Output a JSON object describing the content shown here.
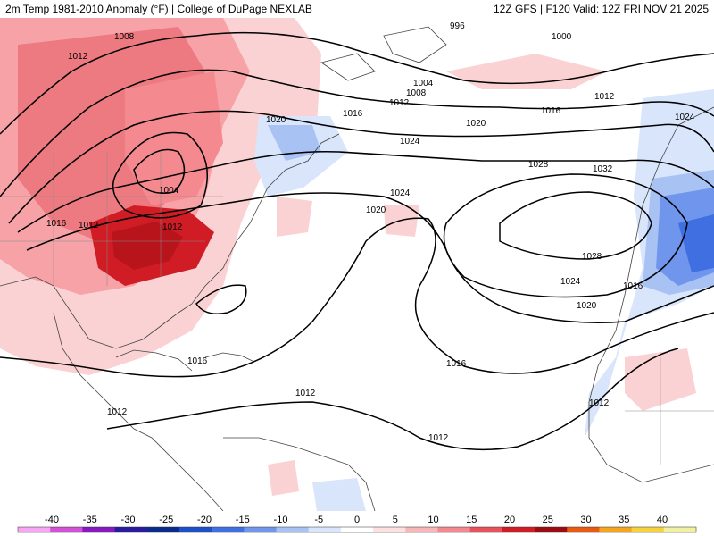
{
  "header": {
    "title_left": "2m Temp 1981-2010 Anomaly (°F) | College of DuPage NEXLAB",
    "title_right": "12Z GFS | F120 Valid: 12Z FRI NOV 21 2025"
  },
  "isobar_labels": [
    "1008",
    "1012",
    "996",
    "1000",
    "1004",
    "1008",
    "1012",
    "1016",
    "1020",
    "1024",
    "1020",
    "1016",
    "1012",
    "1024",
    "1028",
    "1032",
    "1004",
    "1016",
    "1012",
    "1012",
    "1024",
    "1020",
    "1028",
    "1024",
    "1016",
    "1020",
    "1016",
    "1012",
    "1012",
    "1016",
    "1012",
    "1012"
  ],
  "legend": {
    "ticks": [
      "-40",
      "-35",
      "-30",
      "-25",
      "-20",
      "-15",
      "-10",
      "-5",
      "0",
      "5",
      "10",
      "15",
      "20",
      "25",
      "30",
      "35",
      "40"
    ],
    "colors": [
      "#f7a6f5",
      "#d350d8",
      "#8a18c0",
      "#2a1aa0",
      "#0a2a8c",
      "#1f4ec9",
      "#3f6fe0",
      "#6f96ec",
      "#a8c2f4",
      "#d8e5fb",
      "#ffffff",
      "#fde0e0",
      "#f9b6b8",
      "#f48a8f",
      "#e8525b",
      "#d01c24",
      "#9b0c12",
      "#e85a12",
      "#f5a61e",
      "#f7d23c",
      "#f0f0a0"
    ]
  }
}
